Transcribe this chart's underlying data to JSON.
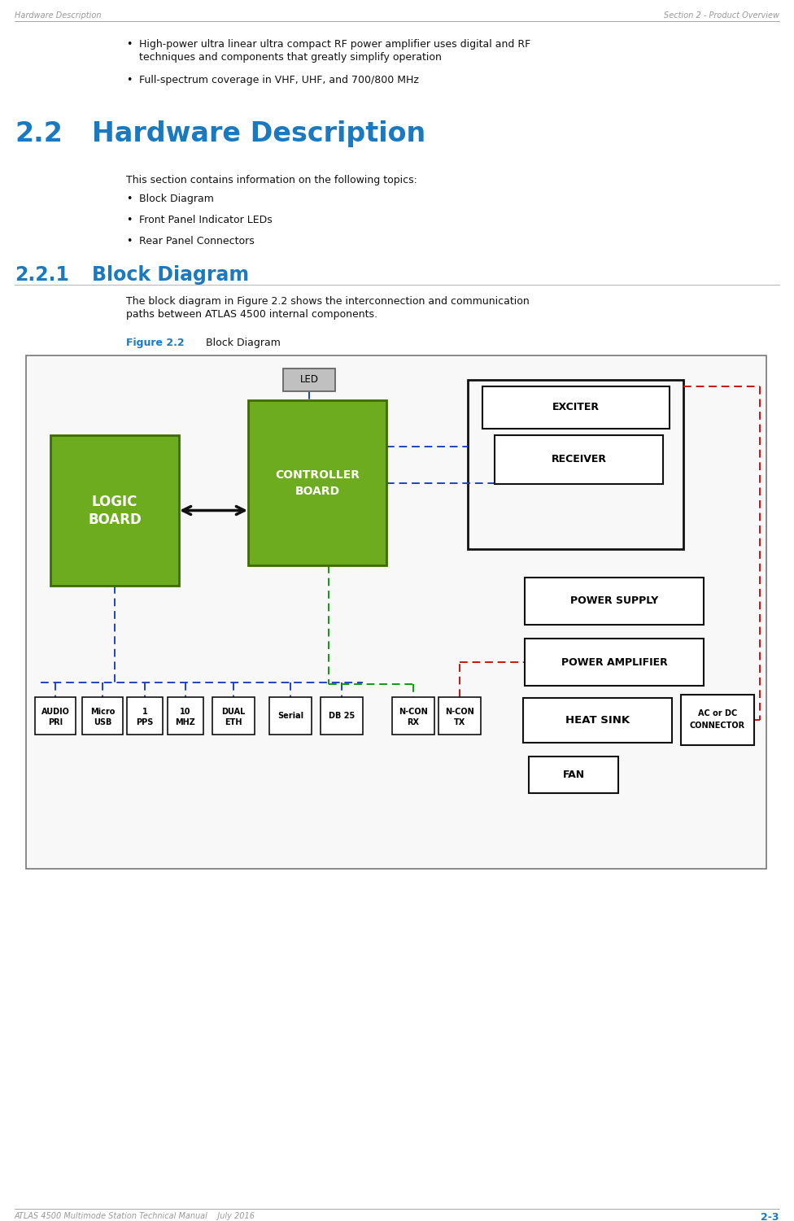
{
  "page_width": 9.76,
  "page_height": 15.01,
  "bg_color": "#ffffff",
  "header_left": "Hardware Description",
  "header_right": "Section 2 - Product Overview",
  "header_color": "#999999",
  "footer_left": "ATLAS 4500 Multimode Station Technical Manual    July 2016",
  "footer_right": "2-3",
  "bullet1_line1": "High-power ultra linear ultra compact RF power amplifier uses digital and RF",
  "bullet1_line2": "techniques and components that greatly simplify operation",
  "bullet2": "Full-spectrum coverage in VHF, UHF, and 700/800 MHz",
  "section_title_num": "2.2",
  "section_title_text": "   Hardware Description",
  "section_color": "#1b7abf",
  "para1": "This section contains information on the following topics:",
  "sub_bullets": [
    "Block Diagram",
    "Front Panel Indicator LEDs",
    "Rear Panel Connectors"
  ],
  "subsection_num": "2.2.1",
  "subsection_text": "    Block Diagram",
  "para2_line1": "The block diagram in Figure 2.2 shows the interconnection and communication",
  "para2_line2": "paths between ATLAS 4500 internal components.",
  "figure_label": "Figure 2.2",
  "figure_label_color": "#1b7abf",
  "figure_caption": "     Block Diagram",
  "green_fill": "#6dab1f",
  "green_border": "#3d6b05",
  "diag_bg": "#f8f8f8",
  "diag_border": "#777777",
  "box_fill": "#ffffff",
  "box_stroke": "#111111",
  "led_fill": "#c0c0c0",
  "led_border": "#666666",
  "blue_dash": "#2244bb",
  "red_dash": "#cc1111",
  "green_dash": "#119911",
  "body_font": 9,
  "bullet_indent": 155,
  "text_indent": 155
}
